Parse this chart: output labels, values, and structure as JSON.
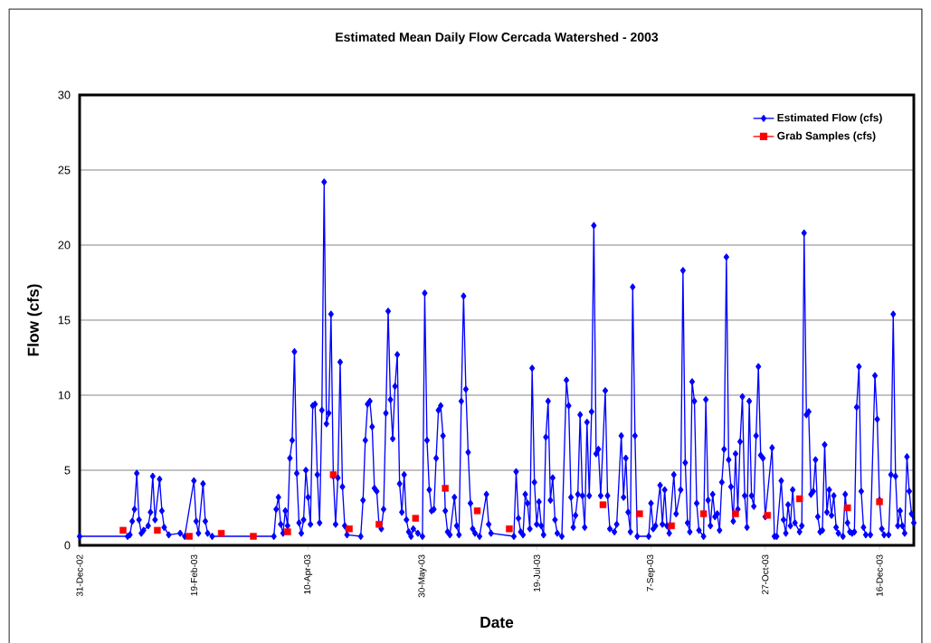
{
  "chart_data": {
    "type": "line",
    "title": "Estimated Mean Daily Flow Cercada Watershed - 2003",
    "xlabel": "Date",
    "ylabel": "Flow (cfs)",
    "xlim": [
      "2002-12-31",
      "2003-12-31"
    ],
    "xticks": [
      {
        "value": "2002-12-31",
        "label": "31-Dec-02"
      },
      {
        "value": "2003-02-19",
        "label": "19-Feb-03"
      },
      {
        "value": "2003-04-10",
        "label": "10-Apr-03"
      },
      {
        "value": "2003-05-30",
        "label": "30-May-03"
      },
      {
        "value": "2003-07-19",
        "label": "19-Jul-03"
      },
      {
        "value": "2003-09-07",
        "label": "7-Sep-03"
      },
      {
        "value": "2003-10-27",
        "label": "27-Oct-03"
      },
      {
        "value": "2003-12-16",
        "label": "16-Dec-03"
      }
    ],
    "ylim": [
      0,
      30
    ],
    "yticks": [
      0,
      5,
      10,
      15,
      20,
      25,
      30
    ],
    "grid": "y",
    "legend": "top right",
    "series": [
      {
        "name": "Estimated Flow (cfs)",
        "marker": "diamond",
        "color": "#0000ff",
        "x": [
          "2002-12-31",
          "2003-01-21",
          "2003-01-22",
          "2003-01-23",
          "2003-01-24",
          "2003-01-25",
          "2003-01-26",
          "2003-01-27",
          "2003-01-28",
          "2003-01-30",
          "2003-01-31",
          "2003-02-01",
          "2003-02-02",
          "2003-02-04",
          "2003-02-05",
          "2003-02-06",
          "2003-02-08",
          "2003-02-13",
          "2003-02-15",
          "2003-02-19",
          "2003-02-20",
          "2003-02-21",
          "2003-02-23",
          "2003-02-24",
          "2003-02-25",
          "2003-02-27",
          "2003-03-26",
          "2003-03-27",
          "2003-03-28",
          "2003-03-29",
          "2003-03-30",
          "2003-03-31",
          "2003-04-01",
          "2003-04-02",
          "2003-04-03",
          "2003-04-04",
          "2003-04-05",
          "2003-04-06",
          "2003-04-07",
          "2003-04-08",
          "2003-04-09",
          "2003-04-10",
          "2003-04-11",
          "2003-04-12",
          "2003-04-13",
          "2003-04-14",
          "2003-04-15",
          "2003-04-16",
          "2003-04-17",
          "2003-04-18",
          "2003-04-19",
          "2003-04-20",
          "2003-04-21",
          "2003-04-22",
          "2003-04-23",
          "2003-04-24",
          "2003-04-25",
          "2003-04-26",
          "2003-04-27",
          "2003-05-03",
          "2003-05-04",
          "2003-05-05",
          "2003-05-06",
          "2003-05-07",
          "2003-05-08",
          "2003-05-09",
          "2003-05-10",
          "2003-05-11",
          "2003-05-12",
          "2003-05-13",
          "2003-05-14",
          "2003-05-15",
          "2003-05-16",
          "2003-05-17",
          "2003-05-18",
          "2003-05-19",
          "2003-05-20",
          "2003-05-21",
          "2003-05-22",
          "2003-05-23",
          "2003-05-24",
          "2003-05-25",
          "2003-05-26",
          "2003-05-28",
          "2003-05-30",
          "2003-05-31",
          "2003-06-01",
          "2003-06-02",
          "2003-06-03",
          "2003-06-04",
          "2003-06-05",
          "2003-06-06",
          "2003-06-07",
          "2003-06-08",
          "2003-06-09",
          "2003-06-10",
          "2003-06-11",
          "2003-06-13",
          "2003-06-14",
          "2003-06-15",
          "2003-06-16",
          "2003-06-17",
          "2003-06-18",
          "2003-06-19",
          "2003-06-20",
          "2003-06-21",
          "2003-06-22",
          "2003-06-24",
          "2003-06-27",
          "2003-06-28",
          "2003-06-29",
          "2003-07-09",
          "2003-07-10",
          "2003-07-11",
          "2003-07-12",
          "2003-07-13",
          "2003-07-14",
          "2003-07-15",
          "2003-07-16",
          "2003-07-17",
          "2003-07-18",
          "2003-07-19",
          "2003-07-20",
          "2003-07-21",
          "2003-07-22",
          "2003-07-23",
          "2003-07-24",
          "2003-07-25",
          "2003-07-26",
          "2003-07-27",
          "2003-07-28",
          "2003-07-30",
          "2003-08-01",
          "2003-08-02",
          "2003-08-03",
          "2003-08-04",
          "2003-08-05",
          "2003-08-06",
          "2003-08-07",
          "2003-08-08",
          "2003-08-09",
          "2003-08-10",
          "2003-08-11",
          "2003-08-12",
          "2003-08-13",
          "2003-08-14",
          "2003-08-15",
          "2003-08-16",
          "2003-08-18",
          "2003-08-19",
          "2003-08-20",
          "2003-08-22",
          "2003-08-23",
          "2003-08-25",
          "2003-08-26",
          "2003-08-27",
          "2003-08-28",
          "2003-08-29",
          "2003-08-30",
          "2003-08-31",
          "2003-09-01",
          "2003-09-06",
          "2003-09-07",
          "2003-09-08",
          "2003-09-09",
          "2003-09-11",
          "2003-09-12",
          "2003-09-13",
          "2003-09-14",
          "2003-09-15",
          "2003-09-17",
          "2003-09-18",
          "2003-09-20",
          "2003-09-21",
          "2003-09-22",
          "2003-09-23",
          "2003-09-24",
          "2003-09-25",
          "2003-09-26",
          "2003-09-27",
          "2003-09-28",
          "2003-09-30",
          "2003-10-01",
          "2003-10-02",
          "2003-10-03",
          "2003-10-04",
          "2003-10-05",
          "2003-10-06",
          "2003-10-07",
          "2003-10-08",
          "2003-10-09",
          "2003-10-10",
          "2003-10-11",
          "2003-10-12",
          "2003-10-13",
          "2003-10-14",
          "2003-10-15",
          "2003-10-16",
          "2003-10-17",
          "2003-10-18",
          "2003-10-19",
          "2003-10-20",
          "2003-10-21",
          "2003-10-22",
          "2003-10-23",
          "2003-10-24",
          "2003-10-25",
          "2003-10-26",
          "2003-10-27",
          "2003-10-30",
          "2003-10-31",
          "2003-11-01",
          "2003-11-03",
          "2003-11-04",
          "2003-11-05",
          "2003-11-06",
          "2003-11-07",
          "2003-11-08",
          "2003-11-09",
          "2003-11-11",
          "2003-11-12",
          "2003-11-13",
          "2003-11-14",
          "2003-11-15",
          "2003-11-16",
          "2003-11-17",
          "2003-11-18",
          "2003-11-19",
          "2003-11-20",
          "2003-11-21",
          "2003-11-22",
          "2003-11-23",
          "2003-11-24",
          "2003-11-25",
          "2003-11-26",
          "2003-11-27",
          "2003-11-28",
          "2003-11-30",
          "2003-12-01",
          "2003-12-02",
          "2003-12-03",
          "2003-12-04",
          "2003-12-05",
          "2003-12-06",
          "2003-12-07",
          "2003-12-08",
          "2003-12-09",
          "2003-12-10",
          "2003-12-12",
          "2003-12-14",
          "2003-12-15",
          "2003-12-16",
          "2003-12-17",
          "2003-12-18",
          "2003-12-20",
          "2003-12-21",
          "2003-12-22",
          "2003-12-23",
          "2003-12-24",
          "2003-12-25",
          "2003-12-26",
          "2003-12-27",
          "2003-12-28",
          "2003-12-29",
          "2003-12-30",
          "2003-12-31"
        ],
        "values": [
          0.6,
          0.6,
          0.7,
          1.6,
          2.4,
          4.8,
          1.7,
          0.8,
          1.0,
          1.3,
          2.2,
          4.6,
          1.7,
          4.4,
          2.3,
          1.2,
          0.7,
          0.8,
          0.6,
          4.3,
          1.6,
          0.8,
          4.1,
          1.6,
          0.8,
          0.6,
          0.6,
          2.4,
          3.2,
          1.4,
          0.8,
          2.3,
          1.3,
          5.8,
          7.0,
          12.9,
          4.8,
          1.5,
          0.8,
          1.7,
          5.0,
          3.2,
          1.4,
          9.3,
          9.4,
          4.7,
          1.5,
          9.0,
          24.2,
          8.1,
          8.8,
          15.4,
          4.6,
          1.4,
          4.5,
          12.2,
          3.9,
          1.3,
          0.7,
          0.6,
          3.0,
          7.0,
          9.4,
          9.6,
          7.9,
          3.8,
          3.6,
          1.4,
          1.1,
          2.4,
          8.8,
          15.6,
          9.7,
          7.1,
          10.6,
          12.7,
          4.1,
          2.2,
          4.7,
          1.7,
          0.9,
          0.6,
          1.1,
          0.8,
          0.6,
          16.8,
          7.0,
          3.7,
          2.3,
          2.4,
          5.8,
          9.0,
          9.3,
          7.3,
          2.3,
          0.9,
          0.7,
          3.2,
          1.3,
          0.7,
          9.6,
          16.6,
          10.4,
          6.2,
          2.8,
          1.1,
          0.8,
          0.6,
          3.4,
          1.4,
          0.8,
          0.6,
          4.9,
          1.8,
          0.9,
          0.7,
          3.4,
          2.8,
          1.1,
          11.8,
          4.2,
          1.4,
          2.9,
          1.3,
          0.7,
          7.2,
          9.6,
          3.0,
          4.5,
          1.7,
          0.8,
          0.6,
          11.0,
          9.3,
          3.2,
          1.2,
          2.0,
          3.4,
          8.7,
          3.3,
          1.2,
          8.2,
          3.3,
          8.9,
          21.3,
          6.1,
          6.4,
          3.3,
          10.3,
          3.3,
          1.1,
          0.9,
          1.4,
          7.3,
          3.2,
          5.8,
          2.2,
          0.9,
          17.2,
          7.3,
          0.6,
          0.6,
          2.8,
          1.1,
          1.3,
          4.0,
          1.4,
          3.7,
          1.3,
          0.8,
          4.7,
          2.1,
          3.7,
          18.3,
          5.5,
          1.5,
          0.9,
          10.9,
          9.6,
          2.8,
          1.0,
          0.6,
          9.7,
          3.0,
          1.3,
          3.4,
          1.9,
          2.1,
          1.0,
          4.2,
          6.4,
          19.2,
          5.7,
          3.9,
          1.6,
          6.1,
          2.4,
          6.9,
          9.9,
          3.3,
          1.2,
          9.6,
          3.3,
          2.6,
          7.3,
          11.9,
          6.0,
          5.8,
          1.9,
          6.5,
          0.6,
          0.6,
          4.3,
          1.7,
          0.8,
          2.7,
          1.3,
          3.7,
          1.5,
          0.9,
          1.3,
          20.8,
          8.7,
          8.9,
          3.4,
          3.6,
          5.7,
          1.9,
          0.9,
          1.0,
          6.7,
          2.2,
          3.7,
          2.0,
          3.3,
          1.2,
          0.8,
          0.6,
          3.4,
          1.5,
          0.9,
          0.8,
          0.9,
          9.2,
          11.9,
          3.6,
          1.2,
          0.7,
          0.7,
          11.3,
          8.4,
          3.0,
          1.1,
          0.7,
          0.7,
          4.7,
          15.4,
          4.6,
          1.3,
          2.3,
          1.3,
          0.8,
          5.9,
          3.6,
          2.1,
          1.5
        ]
      },
      {
        "name": "Grab Samples (cfs)",
        "type": "scatter",
        "marker": "square",
        "color": "#ff0000",
        "x": [
          "2003-01-19",
          "2003-02-03",
          "2003-02-17",
          "2003-03-03",
          "2003-03-17",
          "2003-04-01",
          "2003-04-21",
          "2003-04-28",
          "2003-05-11",
          "2003-05-27",
          "2003-06-09",
          "2003-06-23",
          "2003-07-07",
          "2003-08-17",
          "2003-09-02",
          "2003-09-16",
          "2003-09-30",
          "2003-10-14",
          "2003-10-28",
          "2003-11-11",
          "2003-12-02",
          "2003-12-16"
        ],
        "values": [
          1.0,
          1.0,
          0.6,
          0.8,
          0.6,
          0.9,
          4.7,
          1.1,
          1.4,
          1.8,
          3.8,
          2.3,
          1.1,
          2.7,
          2.1,
          1.3,
          2.1,
          2.1,
          2.0,
          3.1,
          2.5,
          2.9
        ]
      }
    ]
  }
}
